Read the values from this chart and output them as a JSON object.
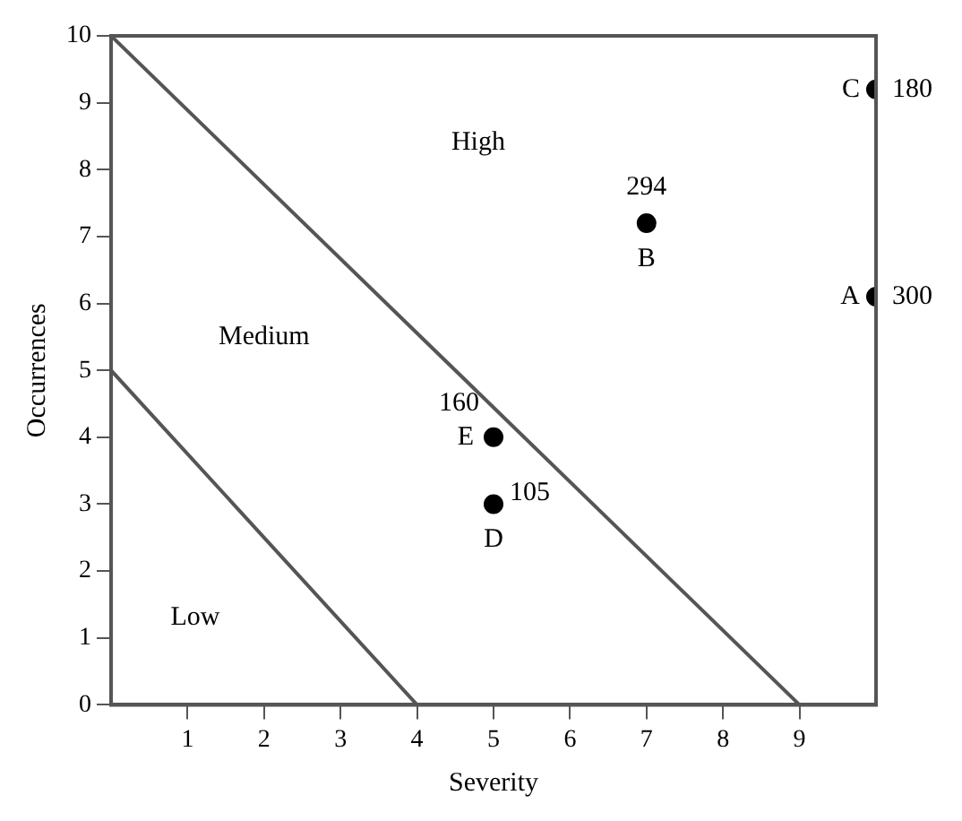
{
  "chart_data": {
    "type": "scatter",
    "xlabel": "Severity",
    "ylabel": "Occurrences",
    "xlim": [
      0,
      10
    ],
    "ylim": [
      0,
      10
    ],
    "xticks": [
      1,
      2,
      3,
      4,
      5,
      6,
      7,
      8,
      9
    ],
    "yticks": [
      0,
      1,
      2,
      3,
      4,
      5,
      6,
      7,
      8,
      9,
      10
    ],
    "grid": false,
    "legend": false,
    "marker": "circle",
    "series": [
      {
        "type": "scatter",
        "color": "#000000",
        "x": [
          10,
          7,
          10,
          5,
          5
        ],
        "values": [
          6.1,
          7.2,
          9.2,
          3,
          4
        ]
      },
      {
        "type": "line",
        "color": "#555555",
        "marker": "none",
        "x": [
          0,
          9
        ],
        "values": [
          10,
          0
        ]
      },
      {
        "type": "line",
        "color": "#555555",
        "marker": "none",
        "x": [
          0,
          4
        ],
        "values": [
          5,
          0
        ]
      }
    ],
    "annotations": [
      {
        "text": "A",
        "x": 10,
        "y": 6.1
      },
      {
        "text": "300",
        "x": 10,
        "y": 6.1
      },
      {
        "text": "B",
        "x": 7,
        "y": 7.2
      },
      {
        "text": "294",
        "x": 7,
        "y": 7.2
      },
      {
        "text": "C",
        "x": 10,
        "y": 9.2
      },
      {
        "text": "180",
        "x": 10,
        "y": 9.2
      },
      {
        "text": "D",
        "x": 5,
        "y": 3
      },
      {
        "text": "105",
        "x": 5,
        "y": 3
      },
      {
        "text": "E",
        "x": 5,
        "y": 4
      },
      {
        "text": "160",
        "x": 5,
        "y": 4
      },
      "High",
      "Medium",
      "Low"
    ]
  }
}
